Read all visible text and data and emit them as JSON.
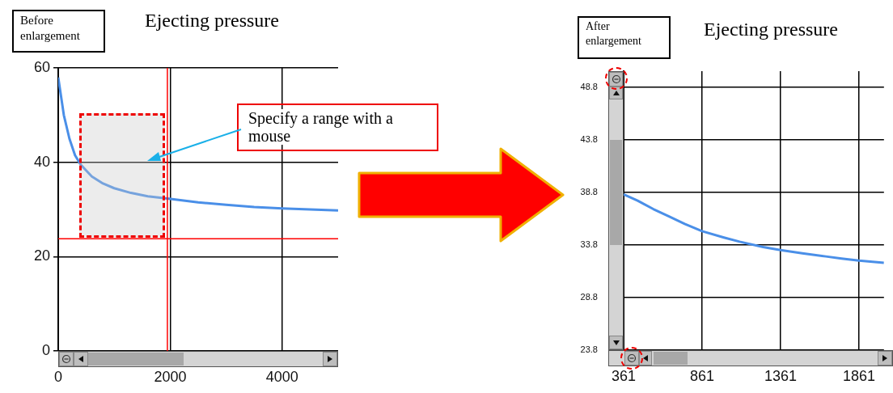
{
  "chart_data": [
    {
      "type": "line",
      "title": "Ejecting pressure",
      "annotations": [
        "Before enlargement",
        "Specify a range with a mouse"
      ],
      "x": [
        0,
        50,
        100,
        200,
        300,
        400,
        600,
        800,
        1000,
        1300,
        1600,
        1950,
        2500,
        3000,
        3500,
        4000,
        4500,
        5000
      ],
      "series": [
        {
          "color": "#4a8fe8",
          "values": [
            58,
            54,
            50,
            45,
            41.5,
            39.5,
            37,
            35.5,
            34.5,
            33.5,
            32.8,
            32.3,
            31.5,
            31,
            30.5,
            30.2,
            30,
            29.8
          ]
        }
      ],
      "xlim": [
        0,
        5000
      ],
      "xticks": [
        0,
        2000,
        4000
      ],
      "ylim": [
        0,
        60
      ],
      "yticks": [
        0,
        20,
        40,
        60
      ],
      "grid": true,
      "legend": false,
      "marker": "none",
      "ref_lines": [
        {
          "axis": "x",
          "value": 1950,
          "color": "#ff0000"
        },
        {
          "axis": "y",
          "value": 23.8,
          "color": "#ff0000"
        }
      ]
    },
    {
      "type": "line",
      "title": "Ejecting pressure",
      "annotations": [
        "After enlargement"
      ],
      "x": [
        361,
        450,
        550,
        650,
        750,
        861,
        1000,
        1100,
        1250,
        1361,
        1500,
        1650,
        1750,
        1861,
        2020
      ],
      "series": [
        {
          "color": "#4a8fe8",
          "values": [
            38.6,
            38,
            37.2,
            36.5,
            35.8,
            35.1,
            34.5,
            34.1,
            33.6,
            33.3,
            33,
            32.7,
            32.5,
            32.3,
            32.1
          ]
        }
      ],
      "xlim": [
        361,
        2020
      ],
      "xticks": [
        361,
        861,
        1361,
        1861
      ],
      "ylim": [
        23.8,
        50.3
      ],
      "yticks": [
        23.8,
        28.8,
        33.8,
        38.8,
        43.8,
        48.8
      ],
      "grid": true,
      "legend": false,
      "marker": "none"
    }
  ]
}
